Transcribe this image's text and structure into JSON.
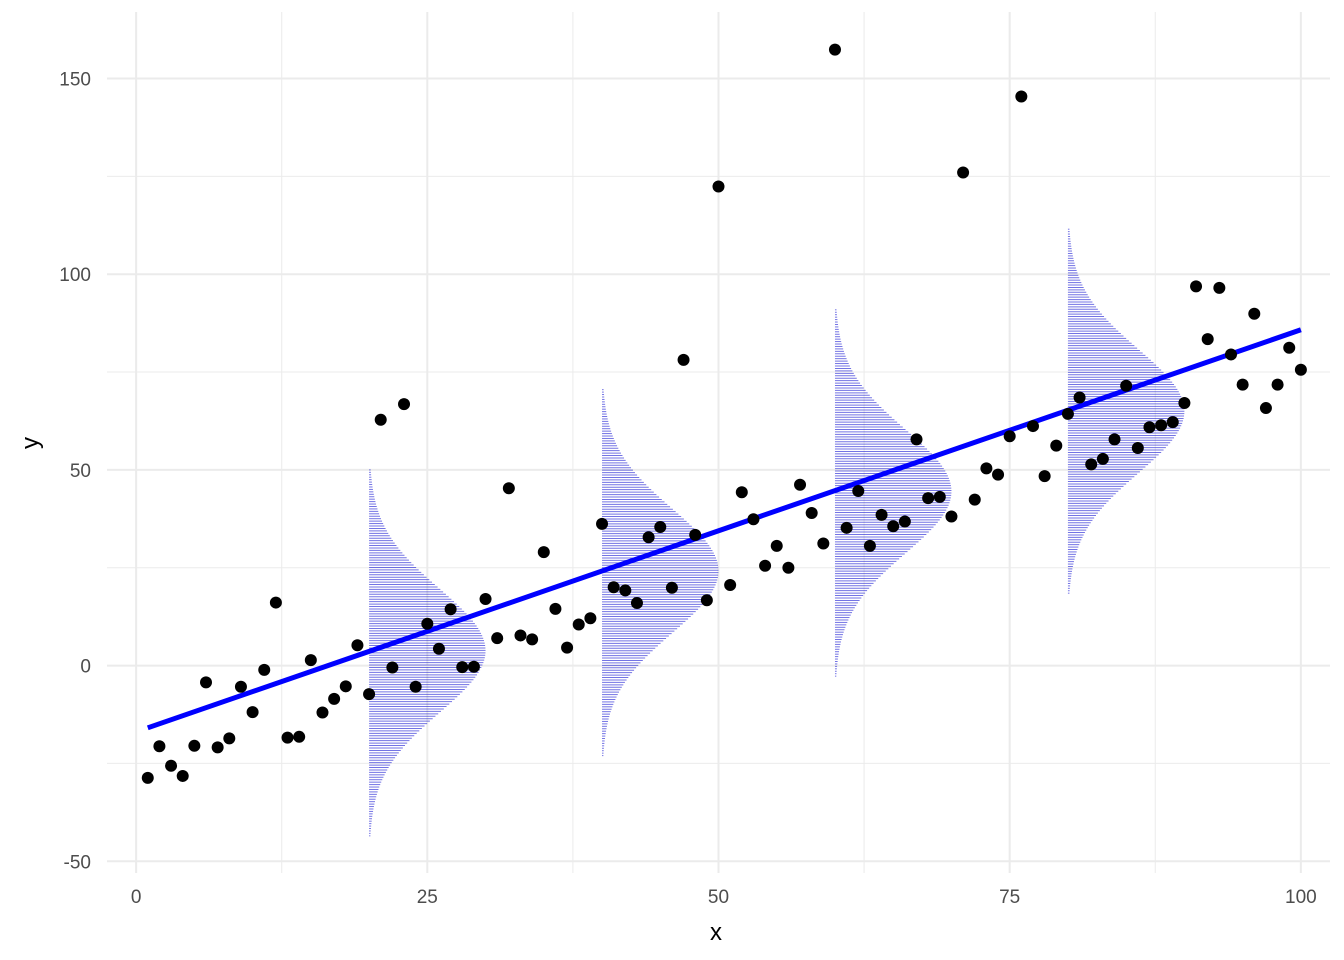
{
  "chart_data": {
    "type": "scatter",
    "title": "",
    "xlabel": "x",
    "ylabel": "y",
    "xlim": [
      -2.5,
      102.5
    ],
    "ylim": [
      -53,
      167
    ],
    "x_ticks": [
      0,
      25,
      50,
      75,
      100
    ],
    "x_tick_labels": [
      "0",
      "25",
      "50",
      "75",
      "100"
    ],
    "y_ticks": [
      -50,
      0,
      50,
      100,
      150
    ],
    "y_tick_labels": [
      "-50",
      "0",
      "50",
      "100",
      "150"
    ],
    "grid": true,
    "legend": "none",
    "points": {
      "x": [
        1,
        2,
        3,
        4,
        5,
        6,
        7,
        8,
        9,
        10,
        11,
        12,
        13,
        14,
        15,
        16,
        17,
        18,
        19,
        20,
        21,
        22,
        23,
        24,
        25,
        26,
        27,
        28,
        29,
        30,
        31,
        32,
        33,
        34,
        35,
        36,
        37,
        38,
        39,
        40,
        41,
        42,
        43,
        44,
        45,
        46,
        47,
        48,
        49,
        50,
        51,
        52,
        53,
        54,
        55,
        56,
        57,
        58,
        59,
        60,
        61,
        62,
        63,
        64,
        65,
        66,
        67,
        68,
        69,
        70,
        71,
        72,
        73,
        74,
        75,
        76,
        77,
        78,
        79,
        80,
        81,
        82,
        83,
        84,
        85,
        86,
        87,
        88,
        89,
        90,
        91,
        92,
        93,
        94,
        95,
        96,
        97,
        98,
        99,
        100
      ],
      "y": [
        -28.7,
        -20.6,
        -25.6,
        -28.2,
        -20.5,
        -4.3,
        -20.9,
        -18.6,
        -5.4,
        -11.9,
        -1.1,
        16.1,
        -18.4,
        -18.2,
        1.4,
        -12.0,
        -8.5,
        -5.3,
        5.2,
        -7.3,
        62.8,
        -0.5,
        66.8,
        -5.4,
        10.7,
        4.3,
        14.4,
        -0.4,
        -0.3,
        17.0,
        7.0,
        45.3,
        7.7,
        6.7,
        29.0,
        14.5,
        4.6,
        10.5,
        12.1,
        36.2,
        20.0,
        19.2,
        16.0,
        32.8,
        35.4,
        19.9,
        78.1,
        33.4,
        16.7,
        122.4,
        20.6,
        44.3,
        37.4,
        25.5,
        30.6,
        25.0,
        46.2,
        39.0,
        31.2,
        157.4,
        35.2,
        44.6,
        30.6,
        38.5,
        35.6,
        36.8,
        57.8,
        42.8,
        43.1,
        38.1,
        126.0,
        42.4,
        50.4,
        48.8,
        58.6,
        145.4,
        61.2,
        48.4,
        56.2,
        64.3,
        68.5,
        51.4,
        52.8,
        57.8,
        71.5,
        55.6,
        60.9,
        61.4,
        62.2,
        67.1,
        96.9,
        83.4,
        96.5,
        79.5,
        71.8,
        89.9,
        65.8,
        71.8,
        81.2,
        75.6
      ]
    },
    "fit_line": {
      "x": [
        1,
        100
      ],
      "y": [
        -15.9,
        85.8
      ],
      "color": "#0000ff"
    },
    "densities": [
      {
        "x": 20,
        "mean": 3.8,
        "sd": 15.8,
        "y_min": -43.5,
        "y_max": 50.0
      },
      {
        "x": 40,
        "mean": 24.2,
        "sd": 15.8,
        "y_min": -23.0,
        "y_max": 70.5
      },
      {
        "x": 60,
        "mean": 44.5,
        "sd": 15.8,
        "y_min": -2.7,
        "y_max": 90.9
      },
      {
        "x": 80,
        "mean": 65.0,
        "sd": 15.8,
        "y_min": 18.5,
        "y_max": 111.5
      }
    ],
    "colors": {
      "points": "#000000",
      "density": "#0000cd",
      "grid": "#ebebeb",
      "tick_label": "#4d4d4d"
    }
  }
}
